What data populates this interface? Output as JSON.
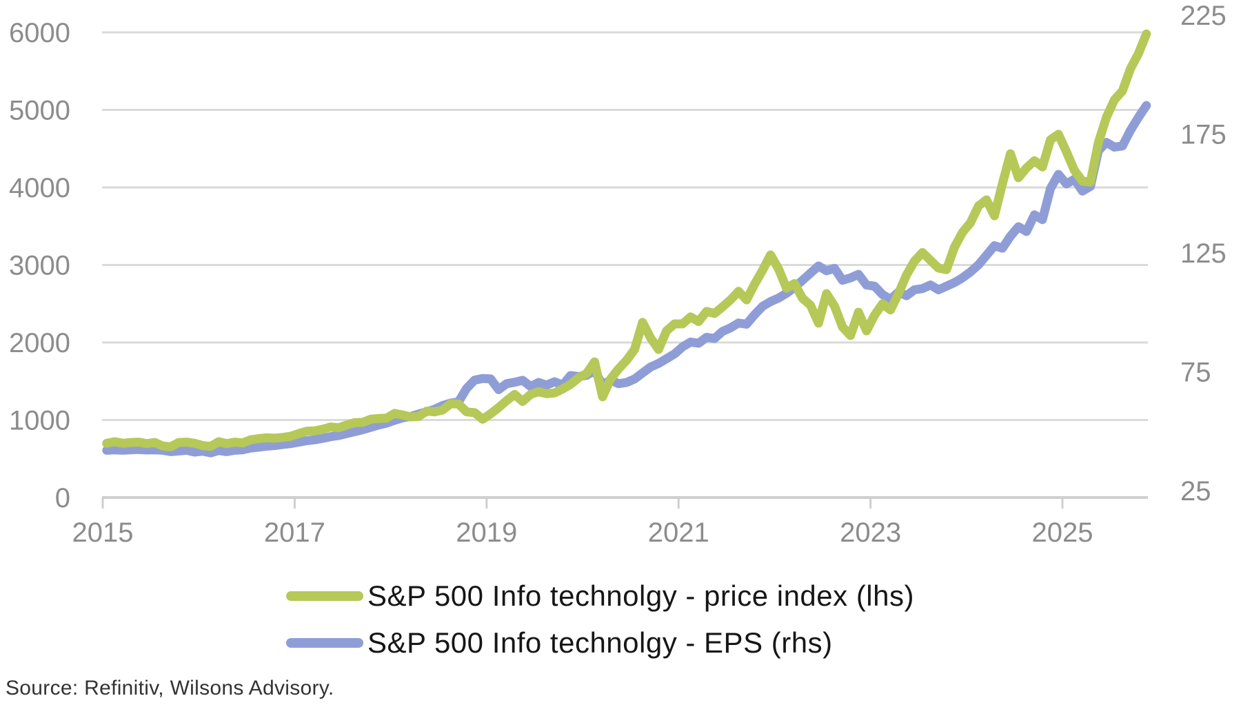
{
  "chart_data": {
    "type": "line",
    "title": "",
    "frequency": "monthly",
    "x_start": "2015-01",
    "x_end": "2025-11",
    "x_tick_labels": [
      "2015",
      "2017",
      "2019",
      "2021",
      "2023",
      "2025"
    ],
    "grid": true,
    "legend_position": "bottom",
    "y_axis_left": {
      "min": 0,
      "max": 6000,
      "ticks": [
        0,
        1000,
        2000,
        3000,
        4000,
        5000,
        6000
      ],
      "tick_labels": [
        "0",
        "1000",
        "2000",
        "3000",
        "4000",
        "5000",
        "6000"
      ]
    },
    "y_axis_right": {
      "min": 25,
      "max": 225,
      "ticks": [
        25,
        75,
        125,
        175,
        225
      ],
      "tick_labels": [
        "25",
        "75",
        "125",
        "175",
        "225"
      ]
    },
    "series": [
      {
        "name": "S&P 500 Info technolgy - price index (lhs)",
        "axis": "left",
        "color": "#b6c858",
        "values": [
          700,
          720,
          700,
          710,
          715,
          695,
          710,
          665,
          655,
          710,
          715,
          700,
          670,
          660,
          720,
          695,
          715,
          705,
          745,
          760,
          770,
          765,
          775,
          790,
          825,
          855,
          860,
          880,
          910,
          900,
          935,
          965,
          970,
          1010,
          1020,
          1025,
          1085,
          1065,
          1040,
          1045,
          1115,
          1105,
          1130,
          1210,
          1205,
          1105,
          1095,
          1010,
          1080,
          1160,
          1250,
          1330,
          1240,
          1330,
          1365,
          1340,
          1350,
          1400,
          1460,
          1545,
          1600,
          1750,
          1300,
          1530,
          1660,
          1770,
          1910,
          2260,
          2060,
          1910,
          2150,
          2240,
          2240,
          2330,
          2270,
          2400,
          2375,
          2460,
          2550,
          2660,
          2550,
          2750,
          2930,
          3130,
          2950,
          2700,
          2760,
          2570,
          2480,
          2250,
          2630,
          2470,
          2200,
          2090,
          2390,
          2150,
          2350,
          2500,
          2420,
          2630,
          2870,
          3050,
          3160,
          3060,
          2960,
          2940,
          3230,
          3420,
          3545,
          3760,
          3840,
          3635,
          4050,
          4435,
          4125,
          4250,
          4345,
          4265,
          4615,
          4685,
          4460,
          4220,
          4080,
          4070,
          4580,
          4905,
          5130,
          5245,
          5530,
          5725,
          5980
        ]
      },
      {
        "name": "S&P 500 Info technolgy - EPS (rhs)",
        "axis": "right",
        "color": "#8f9dd7",
        "values": [
          42.0,
          42.2,
          42.0,
          42.2,
          42.3,
          42.1,
          42.2,
          42.0,
          41.4,
          41.7,
          42.0,
          41.2,
          41.6,
          40.9,
          41.9,
          41.4,
          42.0,
          42.2,
          42.9,
          43.3,
          43.7,
          44.0,
          44.4,
          44.8,
          45.4,
          46.0,
          46.4,
          47.0,
          47.7,
          48.2,
          49.0,
          49.8,
          50.6,
          51.6,
          52.6,
          53.4,
          54.6,
          55.6,
          56.2,
          57.2,
          58.2,
          59.2,
          60.8,
          61.8,
          62.4,
          68.0,
          71.5,
          72.2,
          72.0,
          67.5,
          70.0,
          70.6,
          71.4,
          68.8,
          70.5,
          69.4,
          70.8,
          69.4,
          73.4,
          73.0,
          73.5,
          75.5,
          69.5,
          71.5,
          70.0,
          70.5,
          72.0,
          74.5,
          77.0,
          78.5,
          80.5,
          82.5,
          85.5,
          87.5,
          87.0,
          89.5,
          89.0,
          92.0,
          93.5,
          95.5,
          95.0,
          99.0,
          102.5,
          104.5,
          106.0,
          108.0,
          110.5,
          113.5,
          116.5,
          119.5,
          117.5,
          118.5,
          113.5,
          114.5,
          116.0,
          111.5,
          111.0,
          107.5,
          105.5,
          108.5,
          107.0,
          109.5,
          110.0,
          111.5,
          109.5,
          111.0,
          112.5,
          114.5,
          117,
          120,
          124,
          128,
          127,
          132,
          136,
          134,
          141,
          139,
          152,
          158,
          154,
          156,
          151,
          153,
          168,
          171.5,
          169.5,
          170,
          176.5,
          182,
          187
        ]
      }
    ]
  },
  "source_note": "Source: Refinitiv, Wilsons Advisory.",
  "colors": {
    "background": "#ffffff",
    "gridline": "#dadada",
    "axis_line": "#cfcfcf",
    "tick_label": "#8c8c8c",
    "legend_text": "#161616",
    "source_text": "#333333"
  }
}
